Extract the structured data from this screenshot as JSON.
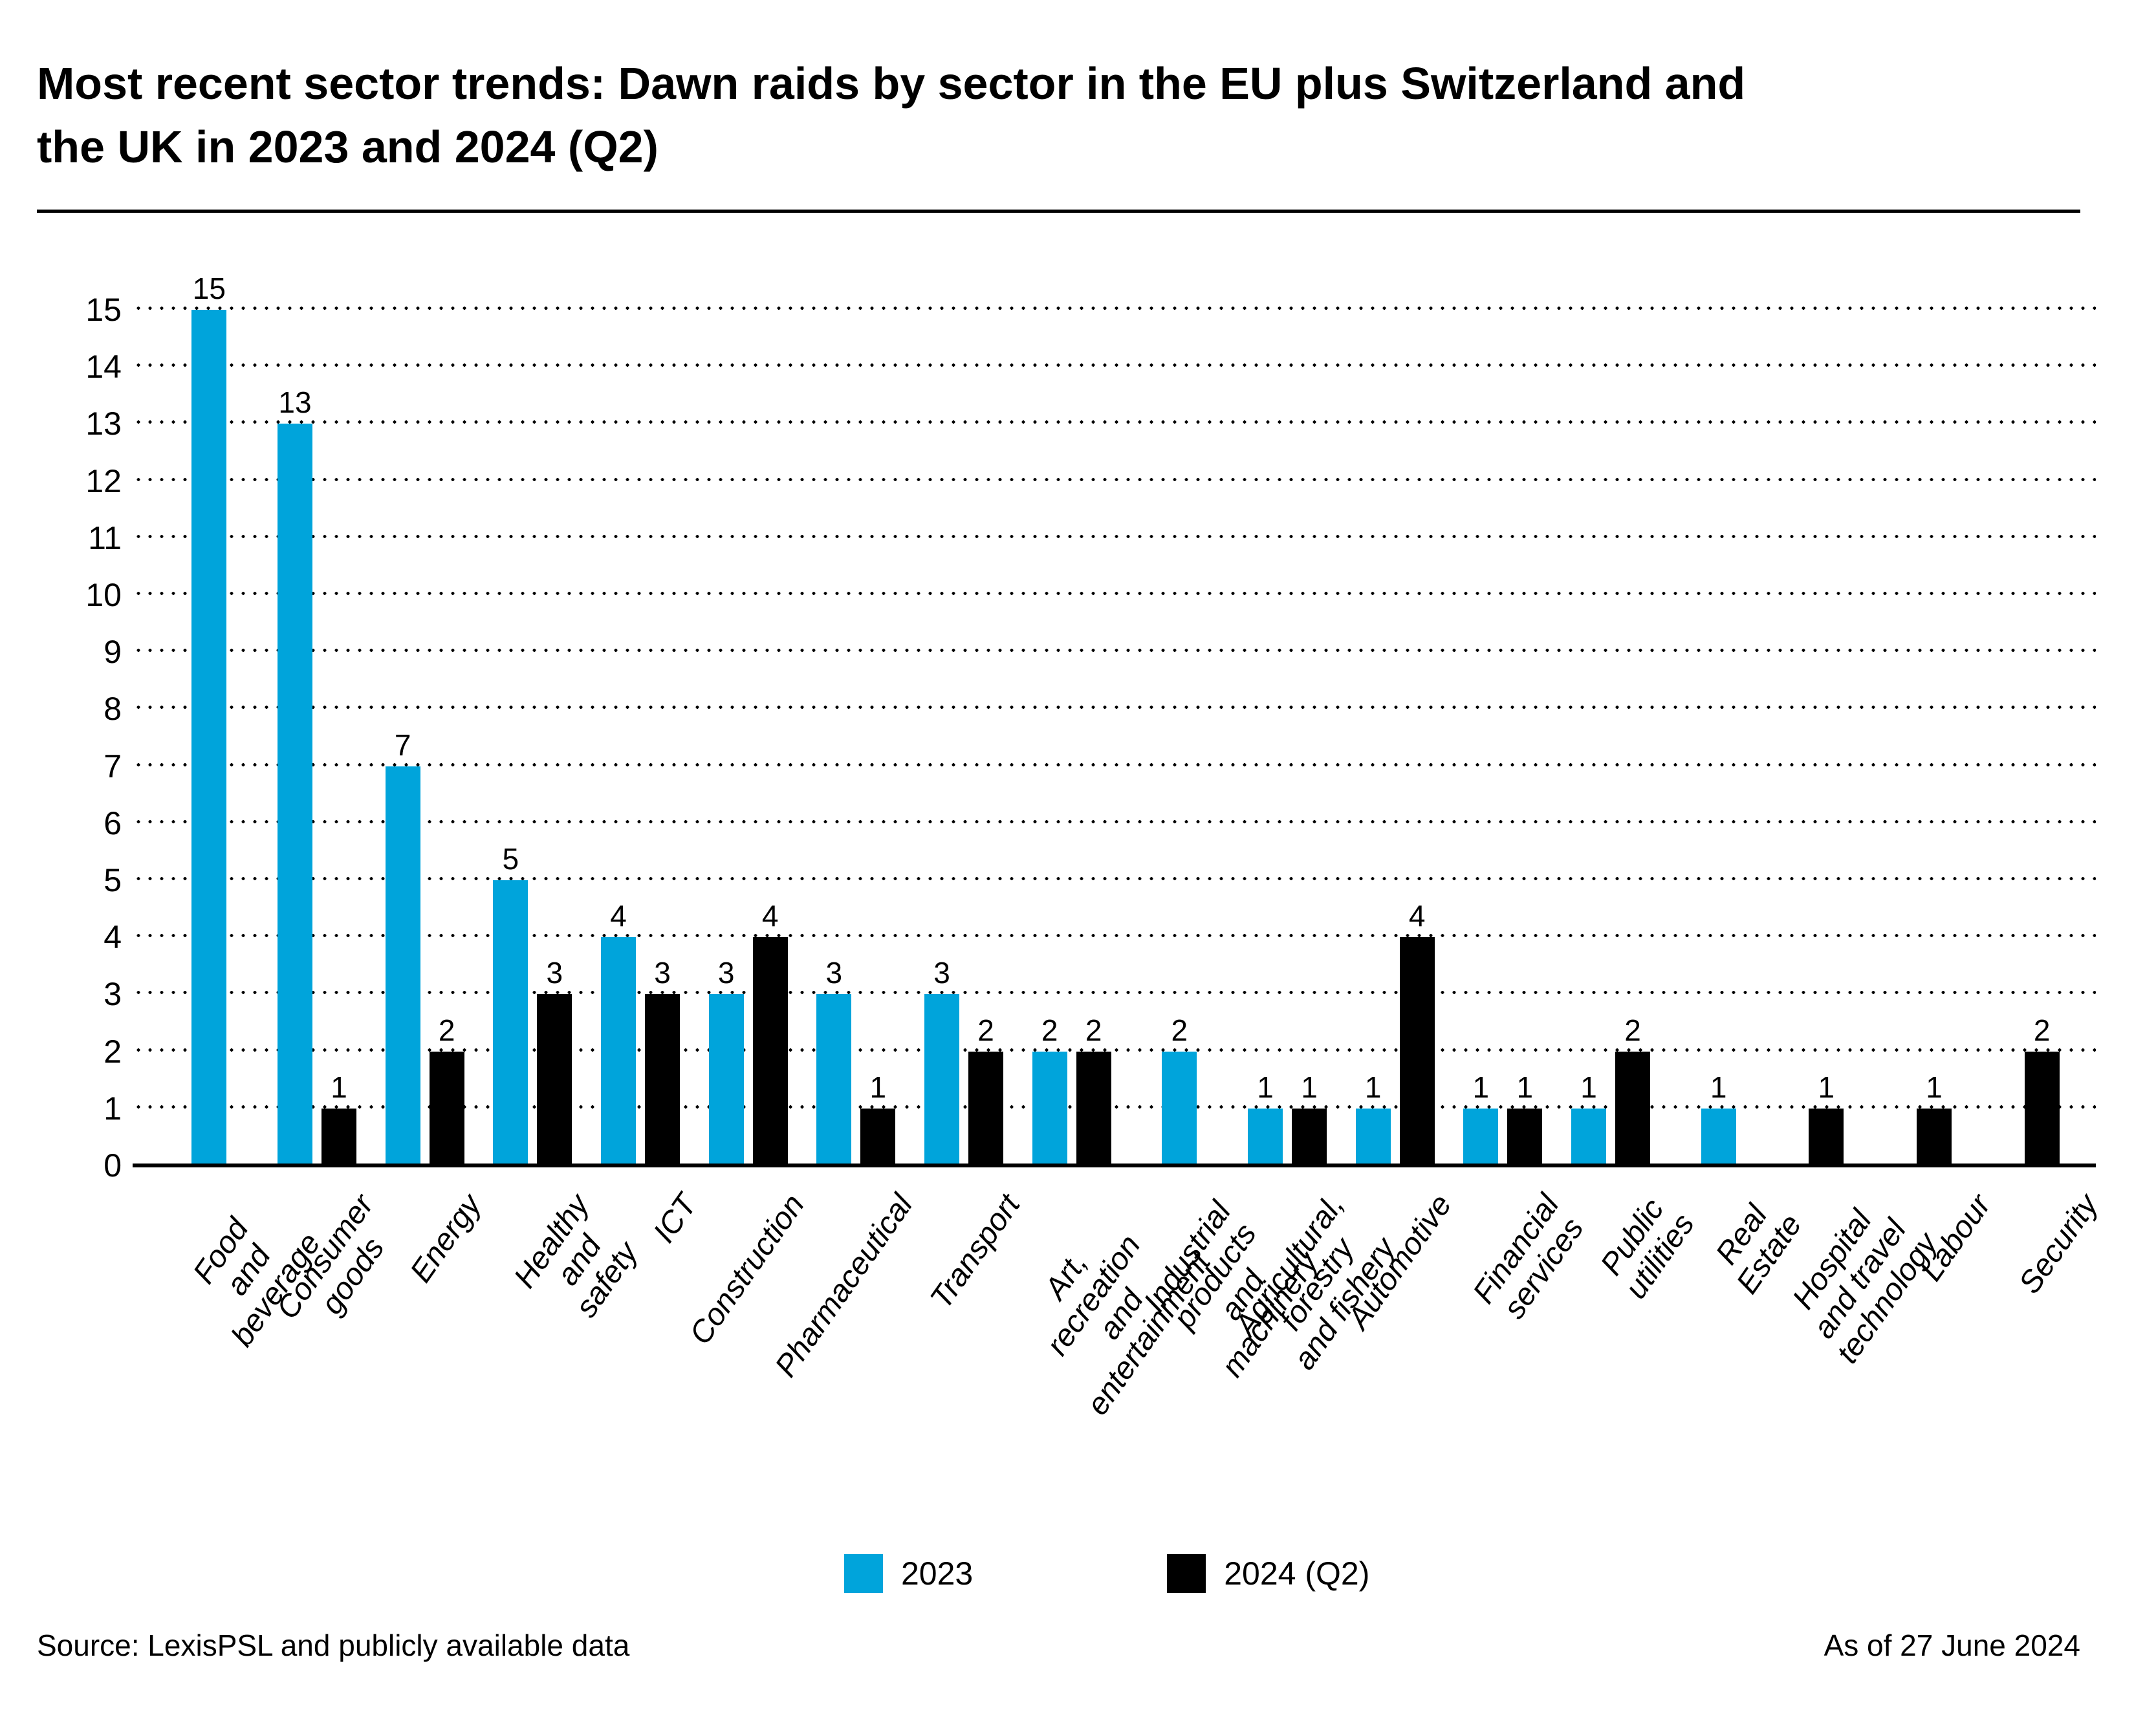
{
  "title": "Most recent sector trends: Dawn raids by sector in the EU plus Switzerland and\nthe UK in 2023 and 2024 (Q2)",
  "footer": {
    "source": "Source: LexisPSL and publicly available data",
    "as_of": "As of 27 June 2024"
  },
  "colors": {
    "accent_2023": "#00A4DB",
    "accent_2024": "#000000",
    "grid": "#000000"
  },
  "chart_data": {
    "type": "bar",
    "title": "Most recent sector trends: Dawn raids by sector in the EU plus Switzerland and the UK in 2023 and 2024 (Q2)",
    "categories": [
      "Food and beverage",
      "Consumer goods",
      "Energy",
      "Healthy and safety",
      "ICT",
      "Construction",
      "Pharmaceutical",
      "Transport",
      "Art, recreation and\nentertainment",
      "Industrial products\nand machinery",
      "Agricultural, forestry\nand fishery",
      "Automotive",
      "Financial services",
      "Public utilities",
      "Real Estate",
      "Hospital and travel\ntechnology",
      "Labour",
      "Security"
    ],
    "series": [
      {
        "name": "2023",
        "color": "#00A4DB",
        "values": [
          15,
          13,
          7,
          5,
          4,
          3,
          3,
          3,
          2,
          2,
          1,
          1,
          1,
          1,
          1,
          0,
          0,
          0
        ]
      },
      {
        "name": "2024 (Q2)",
        "color": "#000000",
        "values": [
          0,
          1,
          2,
          3,
          3,
          4,
          1,
          2,
          2,
          0,
          1,
          4,
          1,
          2,
          0,
          1,
          1,
          2
        ]
      }
    ],
    "xlabel": "",
    "ylabel": "",
    "ylim": [
      0,
      15
    ],
    "ytick_step": 1,
    "grid": "horizontal-dotted",
    "legend_position": "bottom-center",
    "bar_value_labels": true
  }
}
